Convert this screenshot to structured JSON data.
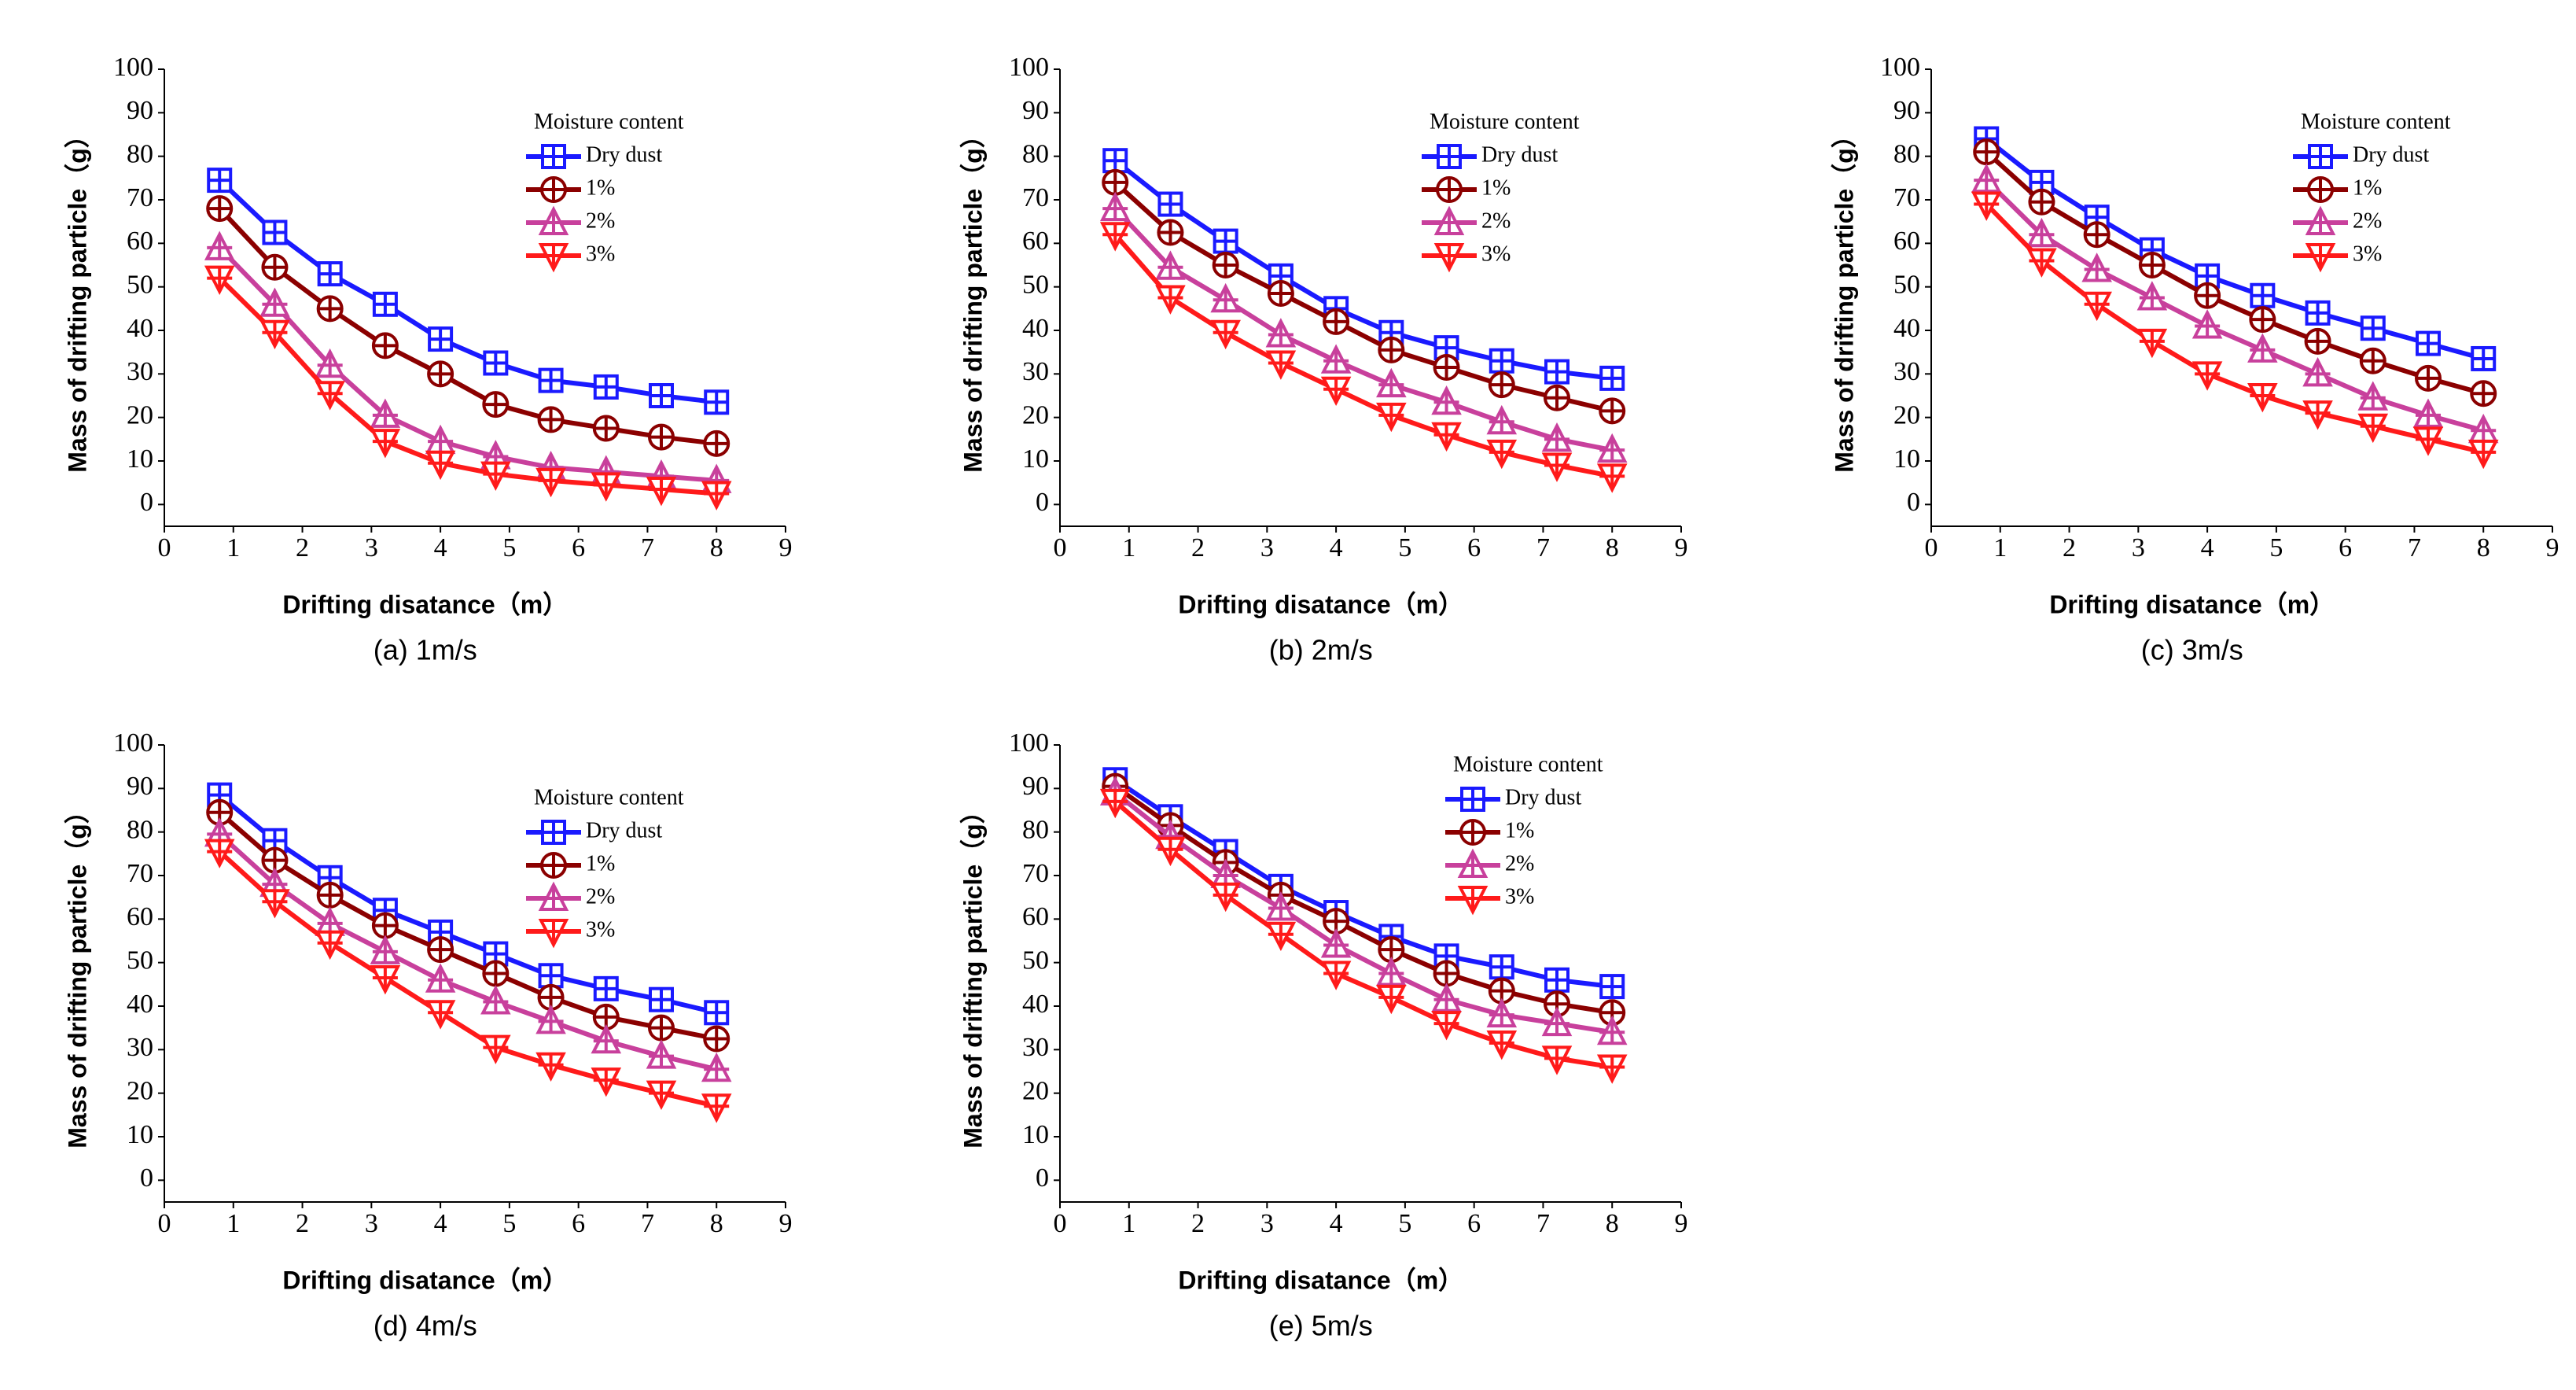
{
  "chart_data": [
    {
      "type": "line",
      "caption": "(a) 1m/s",
      "xlabel": "Drifting disatance（m）",
      "ylabel": "Mass of drifting particle（g）",
      "legend_title": "Moisture content",
      "x": [
        0.8,
        1.6,
        2.4,
        3.2,
        4,
        4.8,
        5.6,
        6.4,
        7.2,
        8
      ],
      "xlim": [
        0,
        9
      ],
      "ylim": [
        -5,
        100
      ],
      "xticks": [
        0,
        1,
        2,
        3,
        4,
        5,
        6,
        7,
        8,
        9
      ],
      "yticks": [
        0,
        10,
        20,
        30,
        40,
        50,
        60,
        70,
        80,
        90,
        100
      ],
      "series": [
        {
          "name": "Dry dust",
          "color": "#1a1aff",
          "marker": "square",
          "values": [
            74.5,
            62.5,
            53,
            46,
            38,
            32.5,
            28.5,
            27,
            25,
            23.5
          ]
        },
        {
          "name": "1%",
          "color": "#8b0000",
          "marker": "circle",
          "values": [
            68,
            54.5,
            45,
            36.5,
            30,
            23,
            19.5,
            17.5,
            15.5,
            14
          ]
        },
        {
          "name": "2%",
          "color": "#c8409c",
          "marker": "triangle-up",
          "values": [
            59,
            46,
            32,
            20.5,
            14.5,
            11,
            8.5,
            7.5,
            6.5,
            5.5
          ]
        },
        {
          "name": "3%",
          "color": "#ff1a1a",
          "marker": "triangle-down",
          "values": [
            52,
            39.5,
            25.5,
            14.5,
            9.5,
            7,
            5.5,
            4.5,
            3.5,
            2.5
          ]
        }
      ]
    },
    {
      "type": "line",
      "caption": "(b) 2m/s",
      "xlabel": "Drifting disatance（m）",
      "ylabel": "Mass of drifting particle（g）",
      "legend_title": "Moisture content",
      "x": [
        0.8,
        1.6,
        2.4,
        3.2,
        4,
        4.8,
        5.6,
        6.4,
        7.2,
        8
      ],
      "xlim": [
        0,
        9
      ],
      "ylim": [
        -5,
        100
      ],
      "xticks": [
        0,
        1,
        2,
        3,
        4,
        5,
        6,
        7,
        8,
        9
      ],
      "yticks": [
        0,
        10,
        20,
        30,
        40,
        50,
        60,
        70,
        80,
        90,
        100
      ],
      "series": [
        {
          "name": "Dry dust",
          "color": "#1a1aff",
          "marker": "square",
          "values": [
            79,
            69,
            60.5,
            52.5,
            45,
            39.5,
            36,
            33,
            30.5,
            29
          ]
        },
        {
          "name": "1%",
          "color": "#8b0000",
          "marker": "circle",
          "values": [
            74,
            62.5,
            55,
            48.5,
            42,
            35.5,
            31.5,
            27.5,
            24.5,
            21.5
          ]
        },
        {
          "name": "2%",
          "color": "#c8409c",
          "marker": "triangle-up",
          "values": [
            68,
            54.5,
            47,
            39,
            33,
            27.5,
            23.5,
            19,
            15,
            12.5
          ]
        },
        {
          "name": "3%",
          "color": "#ff1a1a",
          "marker": "triangle-down",
          "values": [
            62,
            47.5,
            39.5,
            32.5,
            26.5,
            20.5,
            16,
            12,
            9,
            6.5
          ]
        }
      ]
    },
    {
      "type": "line",
      "caption": "(c) 3m/s",
      "xlabel": "Drifting disatance（m）",
      "ylabel": "Mass of drifting particle（g）",
      "legend_title": "Moisture content",
      "x": [
        0.8,
        1.6,
        2.4,
        3.2,
        4,
        4.8,
        5.6,
        6.4,
        7.2,
        8
      ],
      "xlim": [
        0,
        9
      ],
      "ylim": [
        -5,
        100
      ],
      "xticks": [
        0,
        1,
        2,
        3,
        4,
        5,
        6,
        7,
        8,
        9
      ],
      "yticks": [
        0,
        10,
        20,
        30,
        40,
        50,
        60,
        70,
        80,
        90,
        100
      ],
      "series": [
        {
          "name": "Dry dust",
          "color": "#1a1aff",
          "marker": "square",
          "values": [
            84,
            74,
            66,
            58.5,
            52.5,
            48,
            44,
            40.5,
            37,
            33.5
          ]
        },
        {
          "name": "1%",
          "color": "#8b0000",
          "marker": "circle",
          "values": [
            81,
            69.5,
            62,
            55,
            48,
            42.5,
            37.5,
            33,
            29,
            25.5
          ]
        },
        {
          "name": "2%",
          "color": "#c8409c",
          "marker": "triangle-up",
          "values": [
            74.5,
            62,
            54,
            47.5,
            41,
            35.5,
            30,
            24.5,
            20.5,
            17
          ]
        },
        {
          "name": "3%",
          "color": "#ff1a1a",
          "marker": "triangle-down",
          "values": [
            69,
            56,
            46,
            37.5,
            30,
            25,
            21,
            18,
            15,
            12
          ]
        }
      ]
    },
    {
      "type": "line",
      "caption": "(d) 4m/s",
      "xlabel": "Drifting disatance（m）",
      "ylabel": "Mass of drifting particle（g）",
      "legend_title": "Moisture content",
      "x": [
        0.8,
        1.6,
        2.4,
        3.2,
        4,
        4.8,
        5.6,
        6.4,
        7.2,
        8
      ],
      "xlim": [
        0,
        9
      ],
      "ylim": [
        -5,
        100
      ],
      "xticks": [
        0,
        1,
        2,
        3,
        4,
        5,
        6,
        7,
        8,
        9
      ],
      "yticks": [
        0,
        10,
        20,
        30,
        40,
        50,
        60,
        70,
        80,
        90,
        100
      ],
      "series": [
        {
          "name": "Dry dust",
          "color": "#1a1aff",
          "marker": "square",
          "values": [
            88.5,
            78,
            69.5,
            62,
            57,
            52,
            47,
            44,
            41.5,
            38.5
          ]
        },
        {
          "name": "1%",
          "color": "#8b0000",
          "marker": "circle",
          "values": [
            84.5,
            73.5,
            65.5,
            58.5,
            53,
            47.5,
            42,
            37.5,
            35,
            32.5
          ]
        },
        {
          "name": "2%",
          "color": "#c8409c",
          "marker": "triangle-up",
          "values": [
            79.5,
            68,
            59,
            52.5,
            46,
            41,
            36.5,
            32,
            28.5,
            25.5
          ]
        },
        {
          "name": "3%",
          "color": "#ff1a1a",
          "marker": "triangle-down",
          "values": [
            75.5,
            64,
            54.5,
            46.5,
            38.5,
            30.5,
            26.5,
            23,
            20,
            17
          ]
        }
      ]
    },
    {
      "type": "line",
      "caption": "(e) 5m/s",
      "xlabel": "Drifting disatance（m）",
      "ylabel": "Mass of drifting particle（g）",
      "legend_title": "Moisture content",
      "x": [
        0.8,
        1.6,
        2.4,
        3.2,
        4,
        4.8,
        5.6,
        6.4,
        7.2,
        8
      ],
      "xlim": [
        0,
        9
      ],
      "ylim": [
        -5,
        100
      ],
      "xticks": [
        0,
        1,
        2,
        3,
        4,
        5,
        6,
        7,
        8,
        9
      ],
      "yticks": [
        0,
        10,
        20,
        30,
        40,
        50,
        60,
        70,
        80,
        90,
        100
      ],
      "series": [
        {
          "name": "Dry dust",
          "color": "#1a1aff",
          "marker": "square",
          "values": [
            92,
            83.5,
            75.5,
            67.5,
            61.5,
            56,
            51.5,
            49,
            46,
            44.5
          ]
        },
        {
          "name": "1%",
          "color": "#8b0000",
          "marker": "circle",
          "values": [
            90.5,
            81.5,
            73,
            65.5,
            59.5,
            53,
            47.5,
            43.5,
            40.5,
            38.5
          ]
        },
        {
          "name": "2%",
          "color": "#c8409c",
          "marker": "triangle-up",
          "values": [
            89,
            79,
            70,
            62.5,
            54,
            47.5,
            41.5,
            38,
            36,
            34
          ]
        },
        {
          "name": "3%",
          "color": "#ff1a1a",
          "marker": "triangle-down",
          "values": [
            87,
            76,
            65.5,
            56.5,
            47.5,
            42,
            36,
            31.5,
            28,
            26
          ]
        }
      ]
    }
  ]
}
